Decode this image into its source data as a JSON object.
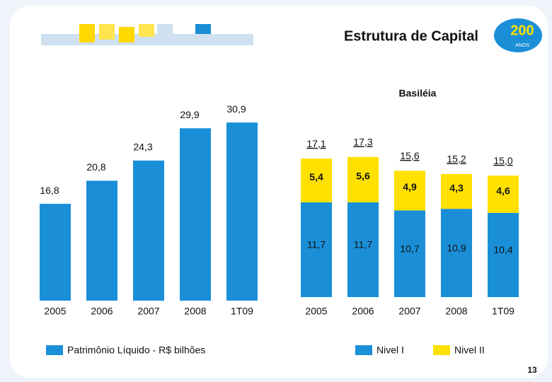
{
  "header": {
    "title": "Estrutura de Capital",
    "logo": "200",
    "logo_sub": "ANOS"
  },
  "page_number": "13",
  "chart_data": [
    {
      "type": "bar",
      "categories": [
        "2005",
        "2006",
        "2007",
        "2008",
        "1T09"
      ],
      "series": [
        {
          "name": "Patrimônio Líquido - R$ bilhões",
          "color": "#1a8fd8",
          "values": [
            16.8,
            20.8,
            24.3,
            29.9,
            30.9
          ],
          "value_labels": [
            "16,8",
            "20,8",
            "24,3",
            "29,9",
            "30,9"
          ]
        }
      ]
    },
    {
      "type": "stacked-bar",
      "title": "Basiléia",
      "categories": [
        "2005",
        "2006",
        "2007",
        "2008",
        "1T09"
      ],
      "series": [
        {
          "name": "Nivel I",
          "color": "#1a8fd8",
          "values": [
            11.7,
            11.7,
            10.7,
            10.9,
            10.4
          ],
          "value_labels": [
            "11,7",
            "11,7",
            "10,7",
            "10,9",
            "10,4"
          ]
        },
        {
          "name": "Nivel II",
          "color": "#ffe000",
          "values": [
            5.4,
            5.6,
            4.9,
            4.3,
            4.6
          ],
          "value_labels": [
            "5,4",
            "5,6",
            "4,9",
            "4,3",
            "4,6"
          ]
        }
      ],
      "totals": [
        17.1,
        17.3,
        15.6,
        15.2,
        15.0
      ],
      "total_labels": [
        "17,1",
        "17,3",
        "15,6",
        "15,2",
        "15,0"
      ]
    }
  ]
}
